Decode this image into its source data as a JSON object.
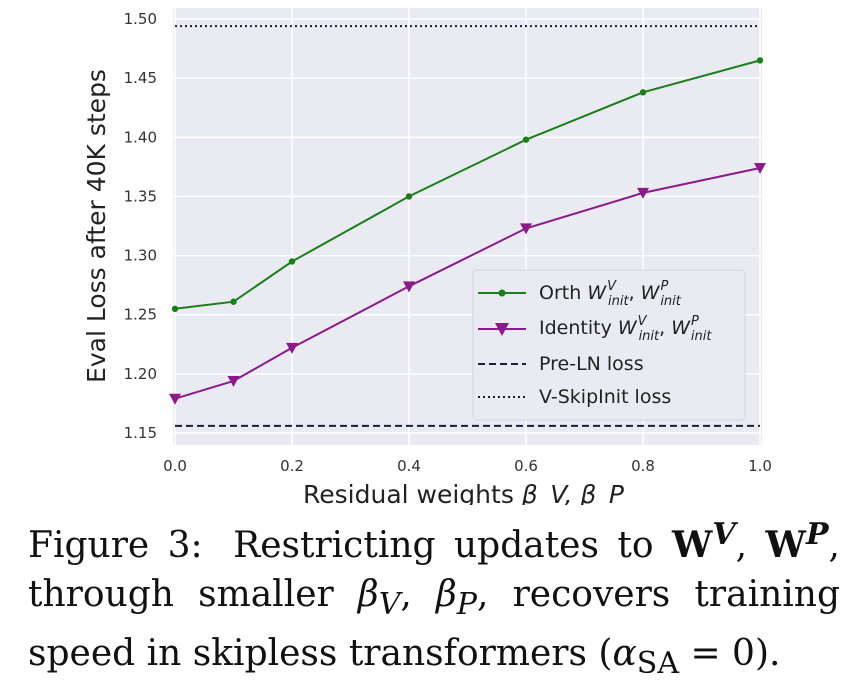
{
  "chart_data": {
    "type": "line",
    "xlabel": "Residual weights",
    "xlabel_math": "β_V, β_P",
    "ylabel": "Eval Loss after 40K steps",
    "xlim": [
      0.0,
      1.0
    ],
    "ylim": [
      1.15,
      1.5
    ],
    "grid": true,
    "legend_position": "lower-right",
    "x": [
      0.0,
      0.1,
      0.2,
      0.4,
      0.6,
      0.8,
      1.0
    ],
    "xticks": [
      "0.0",
      "0.2",
      "0.4",
      "0.6",
      "0.8",
      "1.0"
    ],
    "yticks": [
      "1.15",
      "1.20",
      "1.25",
      "1.30",
      "1.35",
      "1.40",
      "1.45",
      "1.50"
    ],
    "series": [
      {
        "name": "Orth W_init^V, W_init^P",
        "label_prefix": "Orth ",
        "color": "#1a7f1a",
        "marker": "dot",
        "values": [
          1.255,
          1.261,
          1.295,
          1.35,
          1.398,
          1.438,
          1.465
        ]
      },
      {
        "name": "Identity W_init^V, W_init^P",
        "label_prefix": "Identity ",
        "color": "#8b1a8b",
        "marker": "triangle-down",
        "values": [
          1.179,
          1.194,
          1.222,
          1.274,
          1.323,
          1.353,
          1.374
        ]
      }
    ],
    "reference_lines": [
      {
        "name": "Pre-LN loss",
        "value": 1.156,
        "style": "dashed",
        "color": "#1a1f3a"
      },
      {
        "name": "V-SkipInit loss",
        "value": 1.494,
        "style": "dotted",
        "color": "#1a1f3a"
      }
    ]
  },
  "caption": {
    "figure_label": "Figure 3:",
    "text_1": "Restricting updates to",
    "symbol_W": "W",
    "sup_V": "V",
    "sup_P": "P",
    "text_2": "through smaller",
    "beta": "β",
    "sub_V": "V",
    "sub_P": "P",
    "text_3": "recovers training speed in skipless transformers",
    "alpha": "α",
    "sub_SA": "SA",
    "equals_zero": "= 0"
  }
}
